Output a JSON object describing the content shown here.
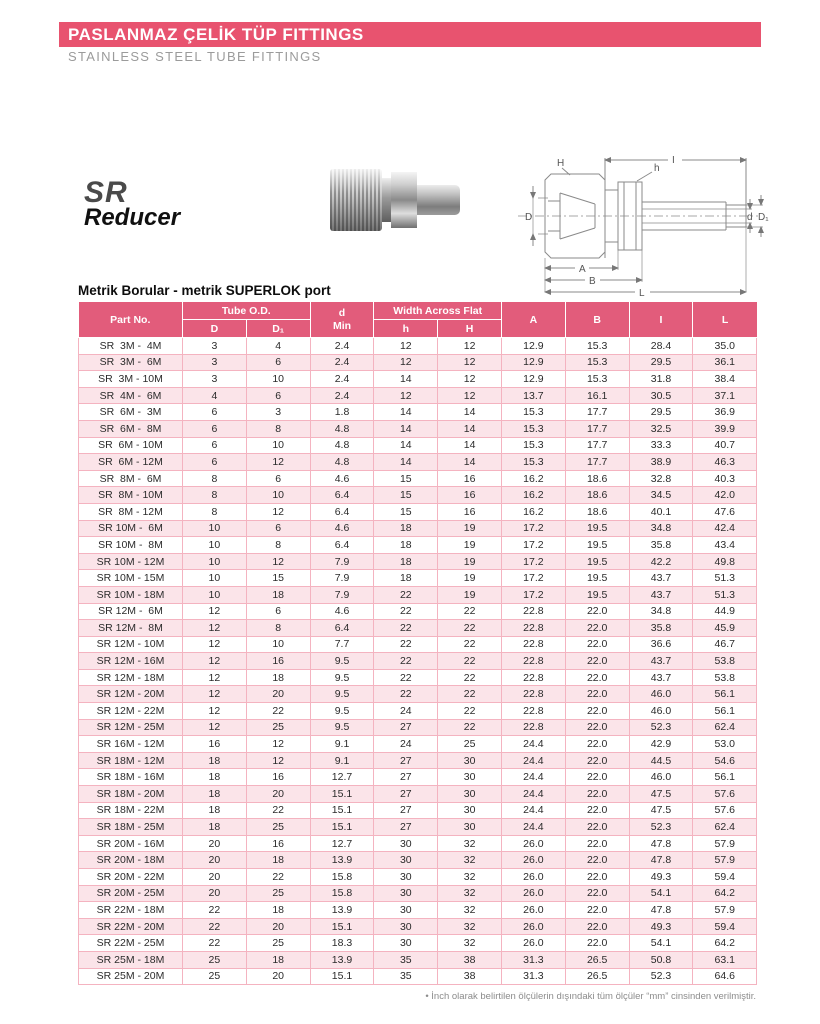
{
  "page": {
    "banner_title": "PASLANMAZ ÇELİK TÜP FITTINGS",
    "banner_subtitle": "STAINLESS STEEL TUBE FITTINGS"
  },
  "product": {
    "series": "SR",
    "name": "Reducer"
  },
  "diagram": {
    "labels": {
      "H": "H",
      "I": "I",
      "h": "h",
      "D": "D",
      "d": "d",
      "D1": "D₁",
      "A": "A",
      "B": "B",
      "L": "L"
    }
  },
  "table": {
    "title": "Metrik Borular -  metrik SUPERLOK port",
    "header": {
      "part_no": "Part No.",
      "tube_od": "Tube O.D.",
      "d_col": "D",
      "d1_col": "D₁",
      "d_min_line1": "d",
      "d_min_line2": "Min",
      "width_across_flat": "Width Across Flat",
      "h_small": "h",
      "h_big": "H",
      "a": "A",
      "b": "B",
      "i": "I",
      "l": "L"
    },
    "rows": [
      [
        "SR  3M -  4M",
        "3",
        "4",
        "2.4",
        "12",
        "12",
        "12.9",
        "15.3",
        "28.4",
        "35.0"
      ],
      [
        "SR  3M -  6M",
        "3",
        "6",
        "2.4",
        "12",
        "12",
        "12.9",
        "15.3",
        "29.5",
        "36.1"
      ],
      [
        "SR  3M - 10M",
        "3",
        "10",
        "2.4",
        "14",
        "12",
        "12.9",
        "15.3",
        "31.8",
        "38.4"
      ],
      [
        "SR  4M -  6M",
        "4",
        "6",
        "2.4",
        "12",
        "12",
        "13.7",
        "16.1",
        "30.5",
        "37.1"
      ],
      [
        "SR  6M -  3M",
        "6",
        "3",
        "1.8",
        "14",
        "14",
        "15.3",
        "17.7",
        "29.5",
        "36.9"
      ],
      [
        "SR  6M -  8M",
        "6",
        "8",
        "4.8",
        "14",
        "14",
        "15.3",
        "17.7",
        "32.5",
        "39.9"
      ],
      [
        "SR  6M - 10M",
        "6",
        "10",
        "4.8",
        "14",
        "14",
        "15.3",
        "17.7",
        "33.3",
        "40.7"
      ],
      [
        "SR  6M - 12M",
        "6",
        "12",
        "4.8",
        "14",
        "14",
        "15.3",
        "17.7",
        "38.9",
        "46.3"
      ],
      [
        "SR  8M -  6M",
        "8",
        "6",
        "4.6",
        "15",
        "16",
        "16.2",
        "18.6",
        "32.8",
        "40.3"
      ],
      [
        "SR  8M - 10M",
        "8",
        "10",
        "6.4",
        "15",
        "16",
        "16.2",
        "18.6",
        "34.5",
        "42.0"
      ],
      [
        "SR  8M - 12M",
        "8",
        "12",
        "6.4",
        "15",
        "16",
        "16.2",
        "18.6",
        "40.1",
        "47.6"
      ],
      [
        "SR 10M -  6M",
        "10",
        "6",
        "4.6",
        "18",
        "19",
        "17.2",
        "19.5",
        "34.8",
        "42.4"
      ],
      [
        "SR 10M -  8M",
        "10",
        "8",
        "6.4",
        "18",
        "19",
        "17.2",
        "19.5",
        "35.8",
        "43.4"
      ],
      [
        "SR 10M - 12M",
        "10",
        "12",
        "7.9",
        "18",
        "19",
        "17.2",
        "19.5",
        "42.2",
        "49.8"
      ],
      [
        "SR 10M - 15M",
        "10",
        "15",
        "7.9",
        "18",
        "19",
        "17.2",
        "19.5",
        "43.7",
        "51.3"
      ],
      [
        "SR 10M - 18M",
        "10",
        "18",
        "7.9",
        "22",
        "19",
        "17.2",
        "19.5",
        "43.7",
        "51.3"
      ],
      [
        "SR 12M -  6M",
        "12",
        "6",
        "4.6",
        "22",
        "22",
        "22.8",
        "22.0",
        "34.8",
        "44.9"
      ],
      [
        "SR 12M -  8M",
        "12",
        "8",
        "6.4",
        "22",
        "22",
        "22.8",
        "22.0",
        "35.8",
        "45.9"
      ],
      [
        "SR 12M - 10M",
        "12",
        "10",
        "7.7",
        "22",
        "22",
        "22.8",
        "22.0",
        "36.6",
        "46.7"
      ],
      [
        "SR 12M - 16M",
        "12",
        "16",
        "9.5",
        "22",
        "22",
        "22.8",
        "22.0",
        "43.7",
        "53.8"
      ],
      [
        "SR 12M - 18M",
        "12",
        "18",
        "9.5",
        "22",
        "22",
        "22.8",
        "22.0",
        "43.7",
        "53.8"
      ],
      [
        "SR 12M - 20M",
        "12",
        "20",
        "9.5",
        "22",
        "22",
        "22.8",
        "22.0",
        "46.0",
        "56.1"
      ],
      [
        "SR 12M - 22M",
        "12",
        "22",
        "9.5",
        "24",
        "22",
        "22.8",
        "22.0",
        "46.0",
        "56.1"
      ],
      [
        "SR 12M - 25M",
        "12",
        "25",
        "9.5",
        "27",
        "22",
        "22.8",
        "22.0",
        "52.3",
        "62.4"
      ],
      [
        "SR 16M - 12M",
        "16",
        "12",
        "9.1",
        "24",
        "25",
        "24.4",
        "22.0",
        "42.9",
        "53.0"
      ],
      [
        "SR 18M - 12M",
        "18",
        "12",
        "9.1",
        "27",
        "30",
        "24.4",
        "22.0",
        "44.5",
        "54.6"
      ],
      [
        "SR 18M - 16M",
        "18",
        "16",
        "12.7",
        "27",
        "30",
        "24.4",
        "22.0",
        "46.0",
        "56.1"
      ],
      [
        "SR 18M - 20M",
        "18",
        "20",
        "15.1",
        "27",
        "30",
        "24.4",
        "22.0",
        "47.5",
        "57.6"
      ],
      [
        "SR 18M - 22M",
        "18",
        "22",
        "15.1",
        "27",
        "30",
        "24.4",
        "22.0",
        "47.5",
        "57.6"
      ],
      [
        "SR 18M - 25M",
        "18",
        "25",
        "15.1",
        "27",
        "30",
        "24.4",
        "22.0",
        "52.3",
        "62.4"
      ],
      [
        "SR 20M - 16M",
        "20",
        "16",
        "12.7",
        "30",
        "32",
        "26.0",
        "22.0",
        "47.8",
        "57.9"
      ],
      [
        "SR 20M - 18M",
        "20",
        "18",
        "13.9",
        "30",
        "32",
        "26.0",
        "22.0",
        "47.8",
        "57.9"
      ],
      [
        "SR 20M - 22M",
        "20",
        "22",
        "15.8",
        "30",
        "32",
        "26.0",
        "22.0",
        "49.3",
        "59.4"
      ],
      [
        "SR 20M - 25M",
        "20",
        "25",
        "15.8",
        "30",
        "32",
        "26.0",
        "22.0",
        "54.1",
        "64.2"
      ],
      [
        "SR 22M - 18M",
        "22",
        "18",
        "13.9",
        "30",
        "32",
        "26.0",
        "22.0",
        "47.8",
        "57.9"
      ],
      [
        "SR 22M - 20M",
        "22",
        "20",
        "15.1",
        "30",
        "32",
        "26.0",
        "22.0",
        "49.3",
        "59.4"
      ],
      [
        "SR 22M - 25M",
        "22",
        "25",
        "18.3",
        "30",
        "32",
        "26.0",
        "22.0",
        "54.1",
        "64.2"
      ],
      [
        "SR 25M - 18M",
        "25",
        "18",
        "13.9",
        "35",
        "38",
        "31.3",
        "26.5",
        "50.8",
        "63.1"
      ],
      [
        "SR 25M - 20M",
        "25",
        "20",
        "15.1",
        "35",
        "38",
        "31.3",
        "26.5",
        "52.3",
        "64.6"
      ]
    ]
  },
  "footnote": "• İnch olarak belirtilen ölçülerin dışındaki tüm ölçüler “mm” cinsinden verilmiştir.",
  "colors": {
    "banner": "#E8536F",
    "table_header": "#E25C7B",
    "row_alt": "#FBE4E9",
    "grid": "#F4B3C0"
  }
}
